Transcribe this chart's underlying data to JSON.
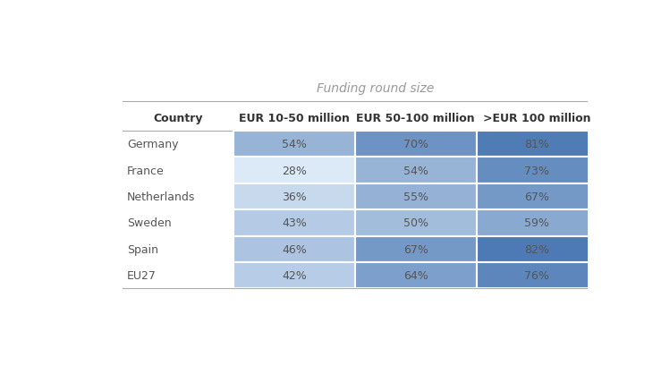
{
  "title": "Funding round size",
  "col_headers": [
    "Country",
    "EUR 10-50 million",
    "EUR 50-100 million",
    ">EUR 100 million"
  ],
  "rows": [
    [
      "Germany",
      "54%",
      "70%",
      "81%"
    ],
    [
      "France",
      "28%",
      "54%",
      "73%"
    ],
    [
      "Netherlands",
      "36%",
      "55%",
      "67%"
    ],
    [
      "Sweden",
      "43%",
      "50%",
      "59%"
    ],
    [
      "Spain",
      "46%",
      "67%",
      "82%"
    ],
    [
      "EU27",
      "42%",
      "64%",
      "76%"
    ]
  ],
  "values": [
    [
      54,
      70,
      81
    ],
    [
      28,
      54,
      73
    ],
    [
      36,
      55,
      67
    ],
    [
      43,
      50,
      59
    ],
    [
      46,
      67,
      82
    ],
    [
      42,
      64,
      76
    ]
  ],
  "background_color": "#ffffff",
  "header_line_color": "#aaaaaa",
  "cell_text_color": "#555555",
  "country_text_color": "#555555",
  "header_text_color": "#333333",
  "title_color": "#999999",
  "col_min_color": "#dce9f7",
  "col_max_color": "#4d7ab5",
  "global_min": 28,
  "global_max": 82
}
